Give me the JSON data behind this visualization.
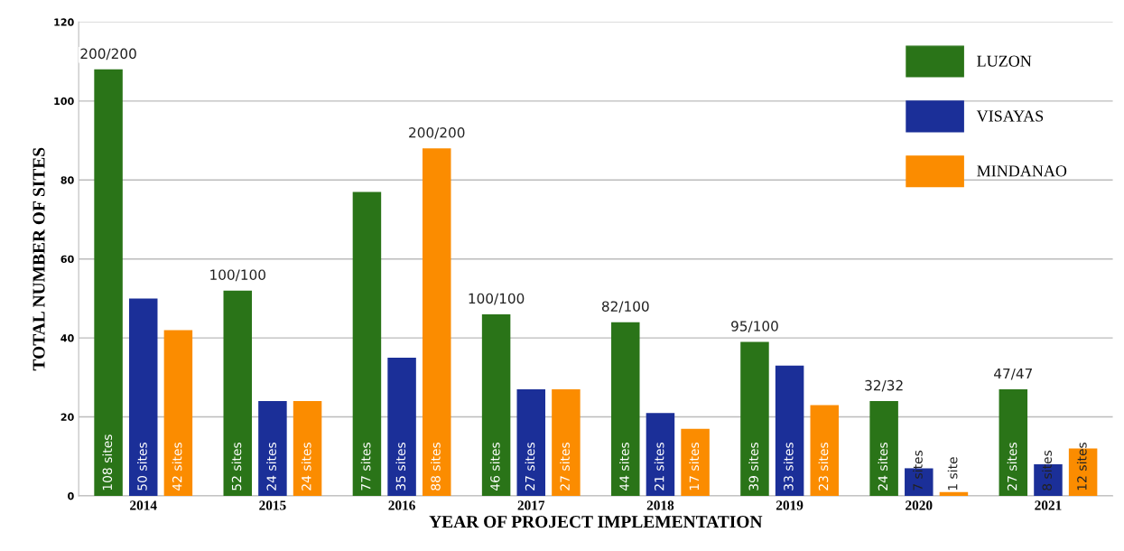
{
  "chart_data": {
    "type": "bar",
    "xlabel": "YEAR OF PROJECT IMPLEMENTATION",
    "ylabel": "TOTAL NUMBER OF SITES",
    "categories": [
      "2014",
      "2015",
      "2016",
      "2017",
      "2018",
      "2019",
      "2020",
      "2021"
    ],
    "series": [
      {
        "name": "LUZON",
        "color": "#2a7418",
        "values": [
          108,
          52,
          77,
          46,
          44,
          39,
          24,
          27
        ],
        "value_labels": [
          "108 sites",
          "52 sites",
          "77 sites",
          "46 sites",
          "44 sites",
          "39 sites",
          "24 sites",
          "27 sites"
        ]
      },
      {
        "name": "VISAYAS",
        "color": "#1b2f98",
        "values": [
          50,
          24,
          35,
          27,
          21,
          33,
          7,
          8
        ],
        "value_labels": [
          "50 sites",
          "24 sites",
          "35 sites",
          "27 sites",
          "21 sites",
          "33 sites",
          "7 sites",
          "8 sites"
        ]
      },
      {
        "name": "MINDANAO",
        "color": "#fb8c00",
        "values": [
          42,
          24,
          88,
          27,
          17,
          23,
          1,
          12
        ],
        "value_labels": [
          "42 sites",
          "24 sites",
          "88 sites",
          "27 sites",
          "17 sites",
          "23 sites",
          "1 site",
          "12 sites"
        ]
      }
    ],
    "annotations": [
      "200/200",
      "100/100",
      "200/200",
      "100/100",
      "82/100",
      "95/100",
      "32/32",
      "47/47"
    ],
    "ylim": [
      0,
      120
    ],
    "yticks": [
      0,
      20,
      40,
      60,
      80,
      100,
      120
    ],
    "grid": "y",
    "legend": "top right"
  }
}
